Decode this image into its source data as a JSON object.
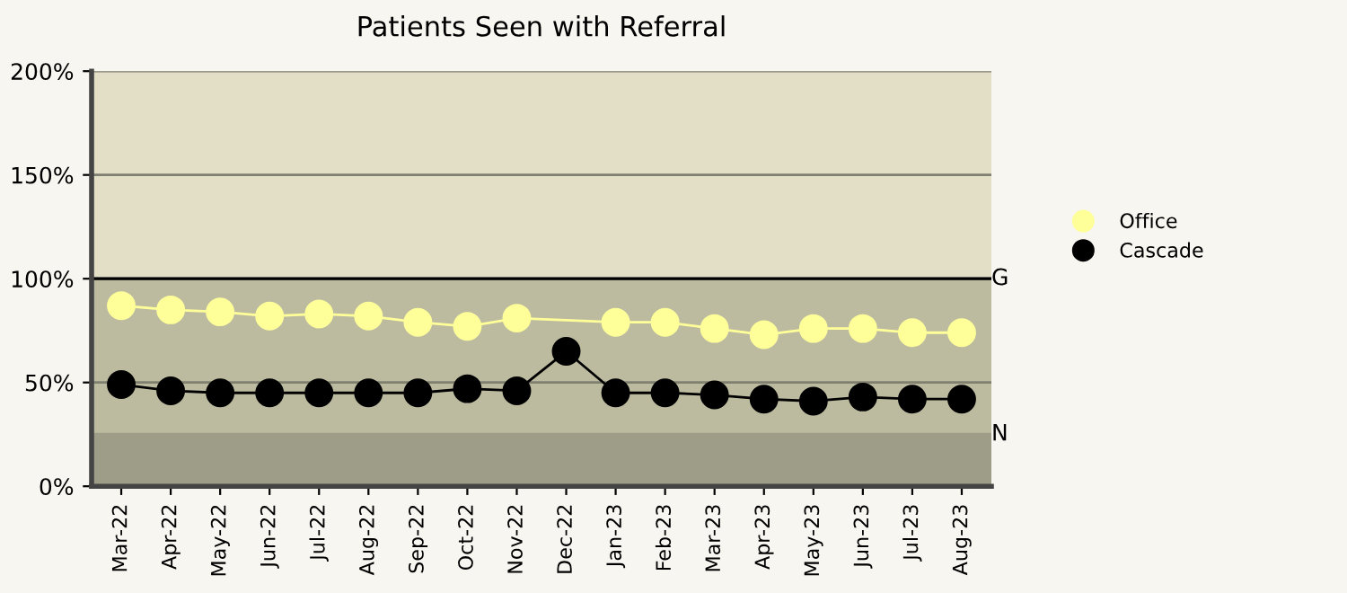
{
  "chart_data": {
    "type": "line",
    "title": "Patients Seen with Referral",
    "categories": [
      "Mar-22",
      "Apr-22",
      "May-22",
      "Jun-22",
      "Jul-22",
      "Aug-22",
      "Sep-22",
      "Oct-22",
      "Nov-22",
      "Dec-22",
      "Jan-23",
      "Feb-23",
      "Mar-23",
      "Apr-23",
      "May-23",
      "Jun-23",
      "Jul-23",
      "Aug-23"
    ],
    "series": [
      {
        "name": "Office",
        "color": "#ffff99",
        "values": [
          87,
          85,
          84,
          82,
          83,
          82,
          79,
          77,
          81,
          null,
          79,
          79,
          76,
          73,
          76,
          76,
          74,
          74
        ]
      },
      {
        "name": "Cascade",
        "color": "#000000",
        "values": [
          49,
          46,
          45,
          45,
          45,
          45,
          45,
          47,
          46,
          65,
          45,
          45,
          44,
          42,
          41,
          43,
          42,
          42
        ]
      }
    ],
    "ylim": [
      0,
      200
    ],
    "yticks": [
      {
        "value": 0,
        "label": "0%"
      },
      {
        "value": 50,
        "label": "50%"
      },
      {
        "value": 100,
        "label": "100%"
      },
      {
        "value": 150,
        "label": "150%"
      },
      {
        "value": 200,
        "label": "200%"
      }
    ],
    "bands": [
      {
        "axis": "y",
        "from": 0,
        "to": 25,
        "color": "#9e9d87"
      },
      {
        "axis": "y",
        "from": 25,
        "to": 100,
        "color": "#bcbba0"
      },
      {
        "axis": "y",
        "from": 100,
        "to": 200,
        "color": "#e3dfc6"
      }
    ],
    "ref_lines": [
      {
        "axis": "y",
        "value": 100,
        "label": "G",
        "color": "#000000"
      },
      {
        "axis": "y",
        "value": 25,
        "label": "N",
        "color": "#9e9d87"
      }
    ],
    "grid": "y",
    "legend": "right",
    "marker": "circle",
    "line_style": "solid"
  }
}
